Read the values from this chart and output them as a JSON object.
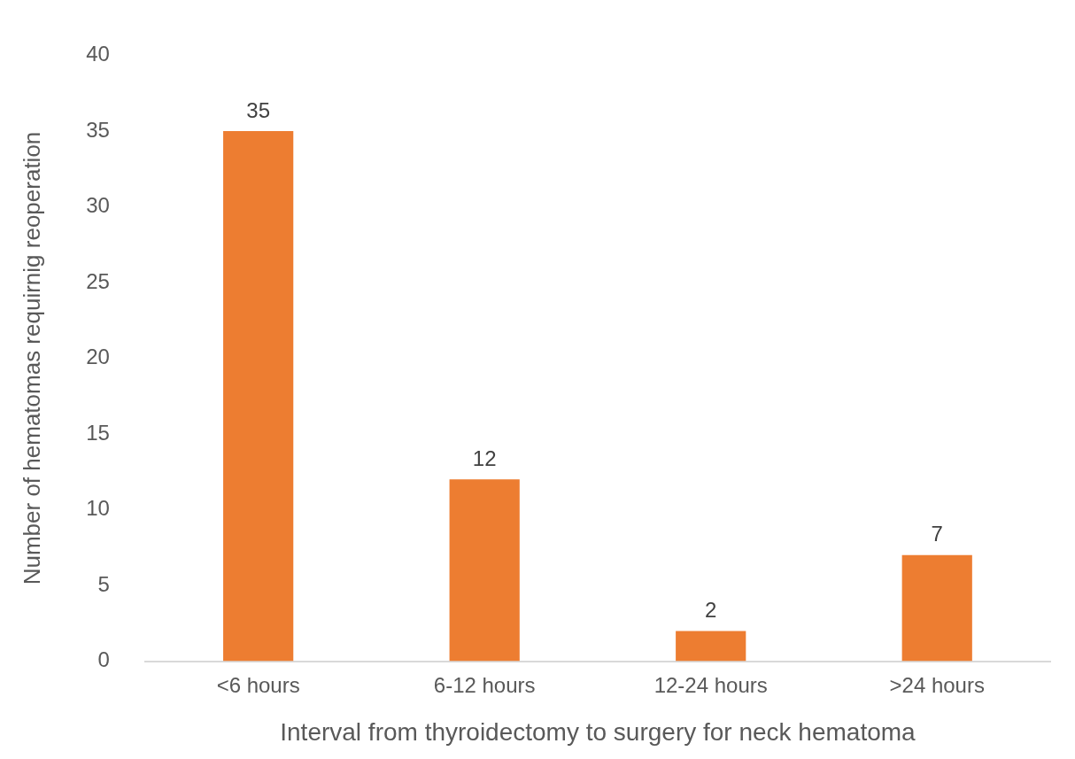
{
  "chart_data": {
    "type": "bar",
    "xlabel": "Interval from thyroidectomy to surgery for neck hematoma",
    "ylabel": "Number of hematomas requirnig reoperation",
    "categories": [
      "<6 hours",
      "6-12 hours",
      "12-24 hours",
      ">24 hours"
    ],
    "values": [
      35,
      12,
      2,
      7
    ],
    "color": "#ed7d31",
    "ylim": [
      0,
      40
    ],
    "yticks": [
      0,
      5,
      10,
      15,
      20,
      25,
      30,
      35,
      40
    ],
    "grid": false,
    "legend": false,
    "data_labels": true
  }
}
